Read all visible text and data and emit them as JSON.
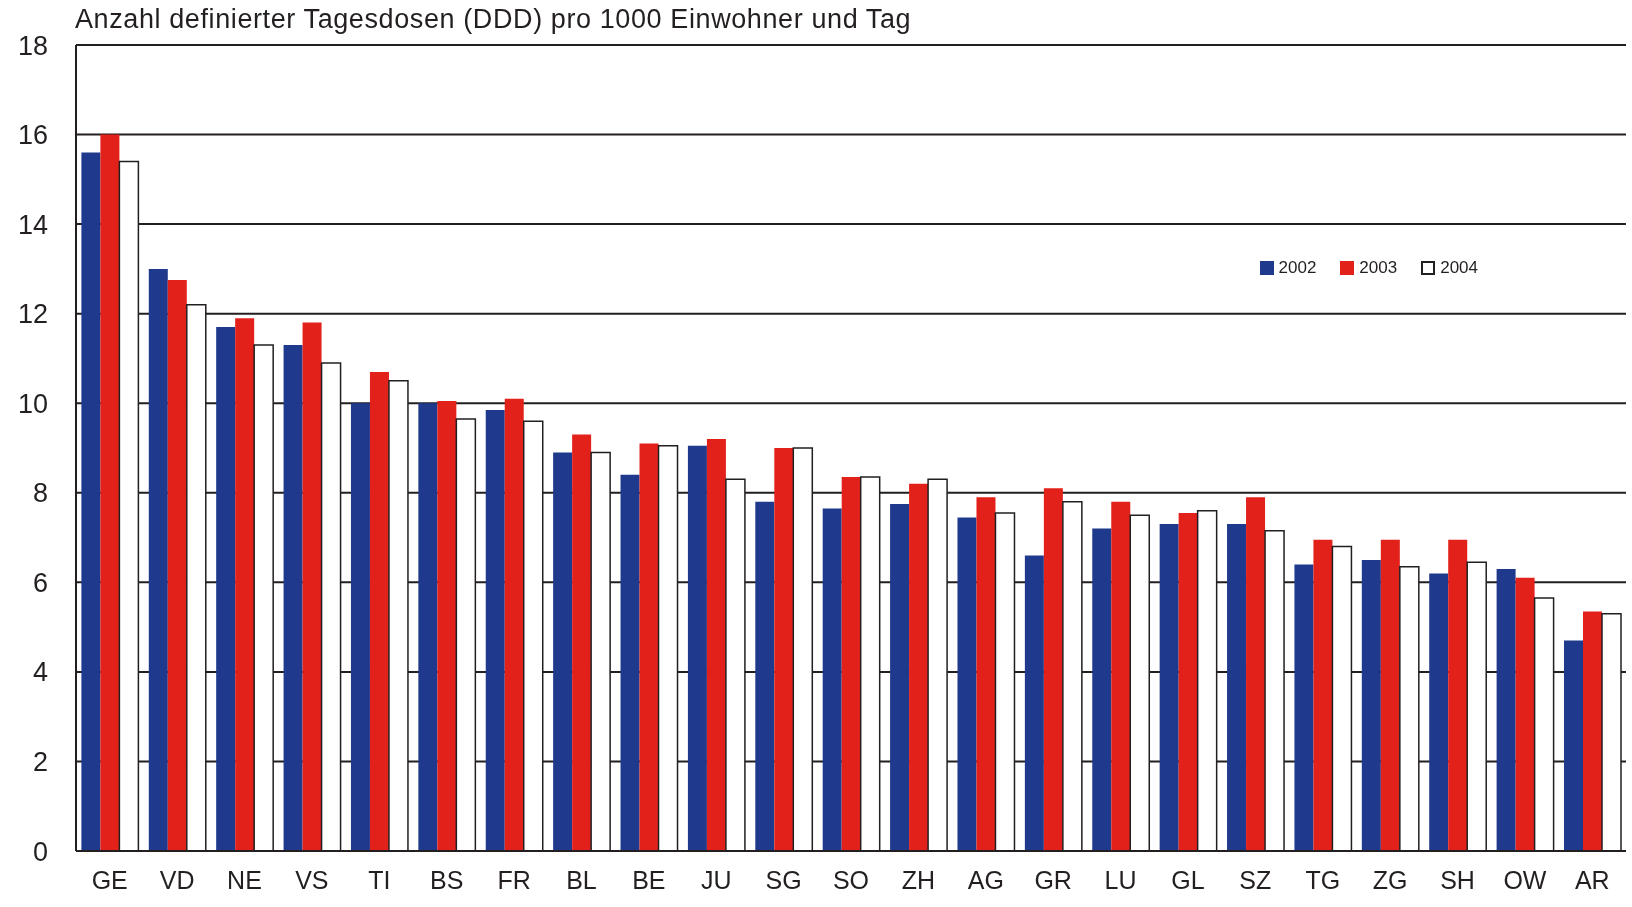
{
  "chart_data": {
    "type": "bar",
    "ylabel": "Anzahl definierter Tagesdosen (DDD) pro 1000 Einwohner und Tag",
    "categories": [
      "GE",
      "VD",
      "NE",
      "VS",
      "TI",
      "BS",
      "FR",
      "BL",
      "BE",
      "JU",
      "SG",
      "SO",
      "ZH",
      "AG",
      "GR",
      "LU",
      "GL",
      "SZ",
      "TG",
      "ZG",
      "SH",
      "OW",
      "AR"
    ],
    "series": [
      {
        "name": "2002",
        "color": "#1f3a8c",
        "values": [
          15.6,
          13.0,
          11.7,
          11.3,
          10.0,
          10.0,
          9.85,
          8.9,
          8.4,
          9.05,
          7.8,
          7.65,
          7.75,
          7.45,
          6.6,
          7.2,
          7.3,
          7.3,
          6.4,
          6.5,
          6.2,
          6.3,
          4.7
        ]
      },
      {
        "name": "2003",
        "color": "#e3211b",
        "values": [
          16.0,
          12.75,
          11.9,
          11.8,
          10.7,
          10.05,
          10.1,
          9.3,
          9.1,
          9.2,
          9.0,
          8.35,
          8.2,
          7.9,
          8.1,
          7.8,
          7.55,
          7.9,
          6.95,
          6.95,
          6.95,
          6.1,
          5.35
        ]
      },
      {
        "name": "2004",
        "color": "#ffffff",
        "values": [
          15.4,
          12.2,
          11.3,
          10.9,
          10.5,
          9.65,
          9.6,
          8.9,
          9.05,
          8.3,
          9.0,
          8.35,
          8.3,
          7.55,
          7.8,
          7.5,
          7.6,
          7.15,
          6.8,
          6.35,
          6.45,
          5.65,
          5.3
        ]
      }
    ],
    "ylim": [
      0,
      18
    ],
    "yticks": [
      0,
      2,
      4,
      6,
      8,
      10,
      12,
      14,
      16,
      18
    ],
    "grid": "y",
    "legend": "top right"
  }
}
